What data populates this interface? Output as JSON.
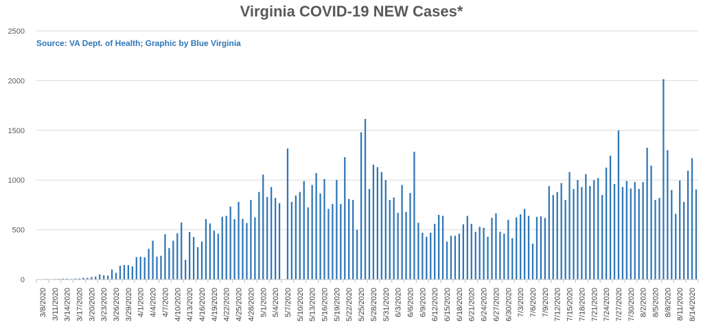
{
  "chart_data": {
    "type": "bar",
    "title": "Virginia COVID-19 NEW Cases*",
    "subtitle": "Source: VA Dept. of Health; Graphic by Blue Virginia",
    "xlabel": "",
    "ylabel": "",
    "ylim": [
      0,
      2500
    ],
    "yticks": [
      0,
      500,
      1000,
      1500,
      2000,
      2500
    ],
    "grid": true,
    "legend": "none",
    "bar_color": "#2e75b6",
    "start_date": "3/7/2020",
    "tick_labels": [
      "3/8/2020",
      "3/11/2020",
      "3/14/2020",
      "3/17/2020",
      "3/20/2020",
      "3/23/2020",
      "3/26/2020",
      "3/29/2020",
      "4/1/2020",
      "4/4/2020",
      "4/7/2020",
      "4/10/2020",
      "4/13/2020",
      "4/16/2020",
      "4/19/2020",
      "4/22/2020",
      "4/25/2020",
      "4/28/2020",
      "5/1/2020",
      "5/4/2020",
      "5/7/2020",
      "5/10/2020",
      "5/13/2020",
      "5/16/2020",
      "5/19/2020",
      "5/22/2020",
      "5/25/2020",
      "5/28/2020",
      "5/31/2020",
      "6/3/2020",
      "6/6/2020",
      "6/9/2020",
      "6/12/2020",
      "6/15/2020",
      "6/18/2020",
      "6/21/2020",
      "6/24/2020",
      "6/27/2020",
      "6/30/2020",
      "7/3/2020",
      "7/6/2020",
      "7/9/2020",
      "7/12/2020",
      "7/15/2020",
      "7/18/2020",
      "7/21/2020",
      "7/24/2020",
      "7/27/2020",
      "7/30/2020",
      "8/2/2020",
      "8/5/2020",
      "8/8/2020",
      "8/11/2020",
      "8/14/2020"
    ],
    "values": [
      2,
      2,
      5,
      3,
      5,
      6,
      9,
      8,
      6,
      10,
      10,
      17,
      16,
      25,
      30,
      51,
      41,
      39,
      100,
      67,
      138,
      145,
      145,
      132,
      225,
      229,
      224,
      308,
      390,
      230,
      238,
      455,
      316,
      390,
      465,
      573,
      198,
      477,
      428,
      325,
      383,
      608,
      564,
      492,
      460,
      631,
      640,
      733,
      607,
      781,
      610,
      568,
      800,
      625,
      880,
      1055,
      830,
      930,
      820,
      768,
      0,
      1318,
      780,
      845,
      880,
      990,
      725,
      950,
      1070,
      865,
      1010,
      710,
      760,
      1000,
      760,
      1230,
      810,
      800,
      500,
      1480,
      1615,
      910,
      1155,
      1130,
      1080,
      1000,
      800,
      825,
      670,
      950,
      680,
      870,
      1285,
      570,
      470,
      430,
      470,
      560,
      650,
      640,
      380,
      440,
      440,
      460,
      555,
      640,
      560,
      480,
      530,
      520,
      430,
      620,
      665,
      480,
      460,
      600,
      415,
      625,
      655,
      710,
      640,
      360,
      630,
      635,
      620,
      940,
      850,
      880,
      970,
      800,
      1080,
      910,
      1000,
      930,
      1060,
      940,
      1000,
      1020,
      850,
      1125,
      1245,
      960,
      1500,
      930,
      990,
      915,
      980,
      910,
      980,
      1325,
      1145,
      800,
      820,
      2015,
      1300,
      900,
      660,
      995,
      780,
      1095,
      1220,
      905
    ]
  }
}
